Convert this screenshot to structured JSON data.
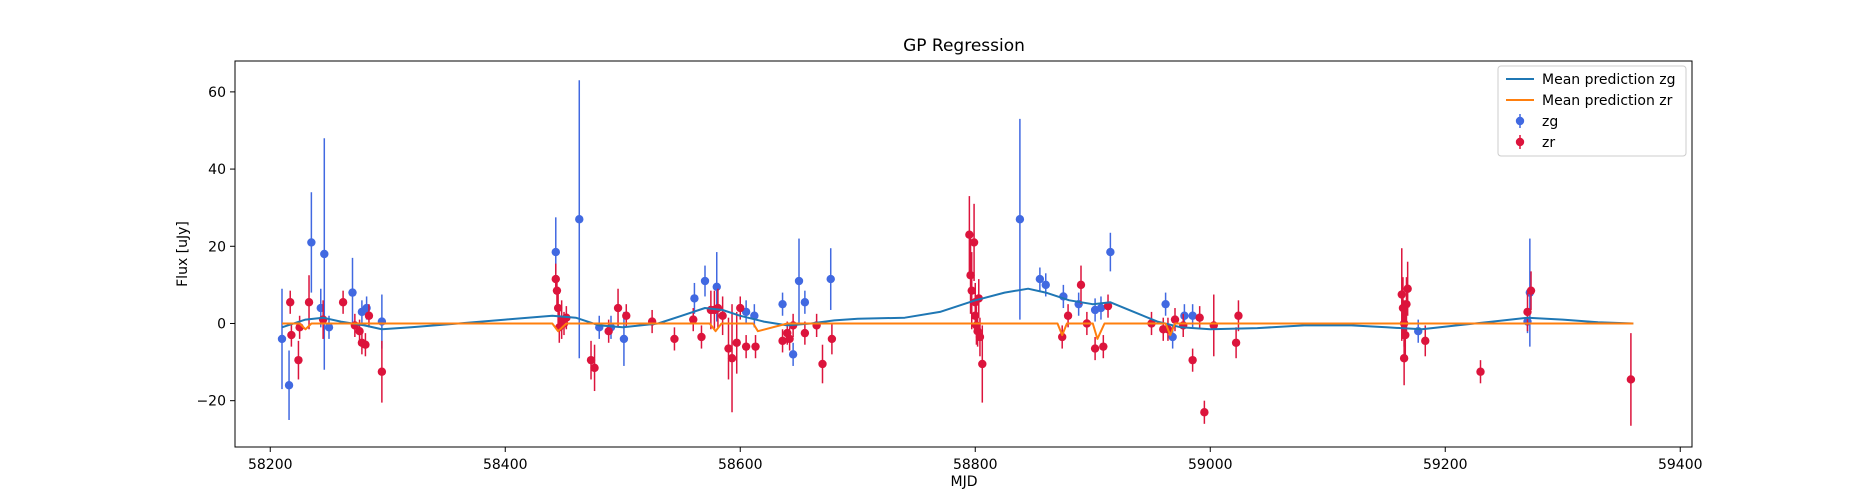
{
  "chart_data": {
    "type": "scatter",
    "title": "GP Regression",
    "xlabel": "MJD",
    "ylabel": "Flux [uJy]",
    "xlim": [
      58170,
      59410
    ],
    "ylim": [
      -32,
      68
    ],
    "x_ticks": [
      58200,
      58400,
      58600,
      58800,
      59000,
      59200,
      59400
    ],
    "x_tick_labels": [
      "58200",
      "58400",
      "58600",
      "58800",
      "59000",
      "59200",
      "59400"
    ],
    "y_ticks": [
      -20,
      0,
      20,
      40,
      60
    ],
    "y_tick_labels": [
      "−20",
      "0",
      "20",
      "40",
      "60"
    ],
    "grid": false,
    "legend_placement": "top-right",
    "colors": {
      "mean_zg": "#1f77b4",
      "mean_zr": "#ff7f0e",
      "zg": "#4169e1",
      "zr": "#dc143c"
    },
    "legend": [
      {
        "label": "Mean prediction zg",
        "kind": "line",
        "color_key": "mean_zg"
      },
      {
        "label": "Mean prediction zr",
        "kind": "line",
        "color_key": "mean_zr"
      },
      {
        "label": "zg",
        "kind": "errorbar",
        "color_key": "zg"
      },
      {
        "label": "zr",
        "kind": "errorbar",
        "color_key": "zr"
      }
    ],
    "lines": [
      {
        "name": "Mean prediction zg",
        "color_key": "mean_zg",
        "x": [
          58210,
          58230,
          58245,
          58260,
          58280,
          58295,
          58320,
          58360,
          58400,
          58440,
          58460,
          58480,
          58500,
          58530,
          58550,
          58570,
          58585,
          58600,
          58620,
          58640,
          58660,
          58680,
          58700,
          58740,
          58770,
          58800,
          58825,
          58845,
          58860,
          58880,
          58900,
          58915,
          58935,
          58955,
          58975,
          59000,
          59040,
          59080,
          59120,
          59150,
          59180,
          59210,
          59240,
          59270,
          59300,
          59330,
          59360
        ],
        "y": [
          -1,
          1,
          1.5,
          0.5,
          -0.5,
          -1.5,
          -1,
          0,
          1,
          2,
          1.5,
          -0.5,
          -1,
          0,
          2,
          4,
          3.5,
          2,
          0.5,
          -0.5,
          0,
          0.8,
          1.2,
          1.5,
          3,
          6,
          8,
          9,
          8,
          6,
          5,
          5.5,
          3,
          0.5,
          -1,
          -1.5,
          -1.2,
          -0.5,
          -0.5,
          -1,
          -1.5,
          -0.5,
          0.5,
          1.5,
          1,
          0.3,
          0
        ]
      },
      {
        "name": "Mean prediction zr",
        "color_key": "mean_zr",
        "x": [
          58210,
          58225,
          58230,
          58235,
          58250,
          58380,
          58440,
          58445,
          58452,
          58460,
          58540,
          58574,
          58579,
          58584,
          58600,
          58611,
          58615,
          58640,
          58800,
          58870,
          58874,
          58878,
          58895,
          58900,
          58904,
          58910,
          58950,
          58962,
          58966,
          58970,
          59160,
          59360
        ],
        "y": [
          0,
          0,
          -1.5,
          0,
          0,
          0,
          0,
          -2,
          0,
          0,
          0,
          0,
          -2,
          0,
          0,
          0,
          -2,
          0,
          0,
          0,
          -3,
          0,
          0,
          0,
          -4,
          0,
          0,
          0,
          -3,
          0,
          0,
          0
        ]
      }
    ],
    "series": [
      {
        "name": "zg",
        "color_key": "zg",
        "points": [
          {
            "x": 58210,
            "y": -4,
            "err": 13
          },
          {
            "x": 58216,
            "y": -16,
            "err": 9
          },
          {
            "x": 58235,
            "y": 21,
            "err": 13
          },
          {
            "x": 58243,
            "y": 4,
            "err": 5
          },
          {
            "x": 58246,
            "y": 18,
            "err": 30
          },
          {
            "x": 58250,
            "y": -1,
            "err": 3
          },
          {
            "x": 58270,
            "y": 8,
            "err": 9
          },
          {
            "x": 58278,
            "y": 3,
            "err": 3
          },
          {
            "x": 58282,
            "y": 4,
            "err": 3
          },
          {
            "x": 58295,
            "y": 0.5,
            "err": 7
          },
          {
            "x": 58443,
            "y": 18.5,
            "err": 9
          },
          {
            "x": 58463,
            "y": 27,
            "err": 36
          },
          {
            "x": 58480,
            "y": -1,
            "err": 3
          },
          {
            "x": 58490,
            "y": -1,
            "err": 3
          },
          {
            "x": 58501,
            "y": -4,
            "err": 7
          },
          {
            "x": 58561,
            "y": 6.5,
            "err": 4
          },
          {
            "x": 58570,
            "y": 11,
            "err": 4
          },
          {
            "x": 58580,
            "y": 9.5,
            "err": 9
          },
          {
            "x": 58605,
            "y": 3,
            "err": 3
          },
          {
            "x": 58612,
            "y": 2,
            "err": 3
          },
          {
            "x": 58636,
            "y": 5,
            "err": 3
          },
          {
            "x": 58645,
            "y": -8,
            "err": 3
          },
          {
            "x": 58650,
            "y": 11,
            "err": 11
          },
          {
            "x": 58655,
            "y": 5.5,
            "err": 3
          },
          {
            "x": 58677,
            "y": 11.5,
            "err": 8
          },
          {
            "x": 58838,
            "y": 27,
            "err": 26
          },
          {
            "x": 58855,
            "y": 11.5,
            "err": 3
          },
          {
            "x": 58860,
            "y": 10,
            "err": 3
          },
          {
            "x": 58875,
            "y": 7,
            "err": 3
          },
          {
            "x": 58888,
            "y": 5,
            "err": 3
          },
          {
            "x": 58902,
            "y": 3.5,
            "err": 3
          },
          {
            "x": 58907,
            "y": 4,
            "err": 3
          },
          {
            "x": 58915,
            "y": 18.5,
            "err": 5
          },
          {
            "x": 58962,
            "y": 5,
            "err": 3
          },
          {
            "x": 58968,
            "y": -3.5,
            "err": 3
          },
          {
            "x": 58978,
            "y": 2,
            "err": 3
          },
          {
            "x": 58985,
            "y": 2,
            "err": 3
          },
          {
            "x": 59177,
            "y": -2,
            "err": 3
          },
          {
            "x": 59270,
            "y": 0.5,
            "err": 3
          },
          {
            "x": 59272,
            "y": 8,
            "err": 14
          }
        ]
      },
      {
        "name": "zr",
        "color_key": "zr",
        "points": [
          {
            "x": 58217,
            "y": 5.5,
            "err": 3
          },
          {
            "x": 58218,
            "y": -3,
            "err": 3
          },
          {
            "x": 58224,
            "y": -9.5,
            "err": 5
          },
          {
            "x": 58225,
            "y": -1,
            "err": 3
          },
          {
            "x": 58233,
            "y": 5.5,
            "err": 7
          },
          {
            "x": 58245,
            "y": 1,
            "err": 5
          },
          {
            "x": 58262,
            "y": 5.5,
            "err": 3
          },
          {
            "x": 58272,
            "y": -0.5,
            "err": 3
          },
          {
            "x": 58276,
            "y": -2,
            "err": 3
          },
          {
            "x": 58278,
            "y": -5,
            "err": 3
          },
          {
            "x": 58281,
            "y": -5.5,
            "err": 3
          },
          {
            "x": 58284,
            "y": 2,
            "err": 3
          },
          {
            "x": 58295,
            "y": -12.5,
            "err": 8
          },
          {
            "x": 58443,
            "y": 11.5,
            "err": 4
          },
          {
            "x": 58444,
            "y": 8.5,
            "err": 4
          },
          {
            "x": 58445,
            "y": 4,
            "err": 4
          },
          {
            "x": 58446,
            "y": -1,
            "err": 4
          },
          {
            "x": 58448,
            "y": 1,
            "err": 5
          },
          {
            "x": 58450,
            "y": 0,
            "err": 3
          },
          {
            "x": 58452,
            "y": 1.5,
            "err": 3
          },
          {
            "x": 58473,
            "y": -9.5,
            "err": 5
          },
          {
            "x": 58476,
            "y": -11.5,
            "err": 6
          },
          {
            "x": 58488,
            "y": -2,
            "err": 3
          },
          {
            "x": 58496,
            "y": 4,
            "err": 5
          },
          {
            "x": 58503,
            "y": 2,
            "err": 3
          },
          {
            "x": 58525,
            "y": 0.5,
            "err": 3
          },
          {
            "x": 58544,
            "y": -4,
            "err": 3
          },
          {
            "x": 58560,
            "y": 1,
            "err": 3
          },
          {
            "x": 58567,
            "y": -3.5,
            "err": 3
          },
          {
            "x": 58575,
            "y": 3.5,
            "err": 5
          },
          {
            "x": 58578,
            "y": 3.5,
            "err": 5
          },
          {
            "x": 58581,
            "y": 4,
            "err": 5
          },
          {
            "x": 58585,
            "y": 2,
            "err": 5
          },
          {
            "x": 58590,
            "y": -6.5,
            "err": 8
          },
          {
            "x": 58593,
            "y": -9,
            "err": 14
          },
          {
            "x": 58597,
            "y": -5,
            "err": 8
          },
          {
            "x": 58600,
            "y": 4,
            "err": 3
          },
          {
            "x": 58605,
            "y": -6,
            "err": 3
          },
          {
            "x": 58613,
            "y": -6,
            "err": 3
          },
          {
            "x": 58636,
            "y": -4.5,
            "err": 3
          },
          {
            "x": 58640,
            "y": -2.5,
            "err": 3
          },
          {
            "x": 58642,
            "y": -4,
            "err": 3
          },
          {
            "x": 58645,
            "y": -0.5,
            "err": 3
          },
          {
            "x": 58655,
            "y": -2.5,
            "err": 3
          },
          {
            "x": 58665,
            "y": -0.5,
            "err": 3
          },
          {
            "x": 58670,
            "y": -10.5,
            "err": 5
          },
          {
            "x": 58678,
            "y": -4,
            "err": 4
          },
          {
            "x": 58795,
            "y": 23,
            "err": 10
          },
          {
            "x": 58796,
            "y": 12.5,
            "err": 10
          },
          {
            "x": 58797,
            "y": 8.5,
            "err": 10
          },
          {
            "x": 58799,
            "y": 21,
            "err": 10
          },
          {
            "x": 58800,
            "y": 5.5,
            "err": 5
          },
          {
            "x": 58800,
            "y": 2,
            "err": 4
          },
          {
            "x": 58801,
            "y": -0.5,
            "err": 5
          },
          {
            "x": 58802,
            "y": -2,
            "err": 4
          },
          {
            "x": 58803,
            "y": 6.5,
            "err": 5
          },
          {
            "x": 58804,
            "y": -3.5,
            "err": 5
          },
          {
            "x": 58806,
            "y": -10.5,
            "err": 10
          },
          {
            "x": 58874,
            "y": -3.5,
            "err": 3
          },
          {
            "x": 58879,
            "y": 2,
            "err": 3
          },
          {
            "x": 58890,
            "y": 10,
            "err": 5
          },
          {
            "x": 58895,
            "y": 0,
            "err": 3
          },
          {
            "x": 58902,
            "y": -6.5,
            "err": 3
          },
          {
            "x": 58909,
            "y": -6,
            "err": 3
          },
          {
            "x": 58913,
            "y": 4.5,
            "err": 3
          },
          {
            "x": 58950,
            "y": 0,
            "err": 3
          },
          {
            "x": 58960,
            "y": -1.5,
            "err": 3
          },
          {
            "x": 58964,
            "y": -1.5,
            "err": 3
          },
          {
            "x": 58970,
            "y": 1,
            "err": 3
          },
          {
            "x": 58977,
            "y": -0.5,
            "err": 3
          },
          {
            "x": 58985,
            "y": -9.5,
            "err": 3
          },
          {
            "x": 58991,
            "y": 1.5,
            "err": 3
          },
          {
            "x": 58995,
            "y": -23,
            "err": 3
          },
          {
            "x": 59003,
            "y": -0.5,
            "err": 8
          },
          {
            "x": 59022,
            "y": -5,
            "err": 4
          },
          {
            "x": 59024,
            "y": 2,
            "err": 4
          },
          {
            "x": 59163,
            "y": 7.5,
            "err": 12
          },
          {
            "x": 59164,
            "y": 4,
            "err": 8
          },
          {
            "x": 59165,
            "y": 0,
            "err": 6
          },
          {
            "x": 59165,
            "y": -9,
            "err": 7
          },
          {
            "x": 59166,
            "y": -3,
            "err": 7
          },
          {
            "x": 59167,
            "y": 5,
            "err": 7
          },
          {
            "x": 59168,
            "y": 9,
            "err": 7
          },
          {
            "x": 59183,
            "y": -4.5,
            "err": 4
          },
          {
            "x": 59230,
            "y": -12.5,
            "err": 3
          },
          {
            "x": 59270,
            "y": 3,
            "err": 5
          },
          {
            "x": 59273,
            "y": 8.5,
            "err": 5
          },
          {
            "x": 59358,
            "y": -14.5,
            "err": 12
          }
        ]
      }
    ]
  }
}
